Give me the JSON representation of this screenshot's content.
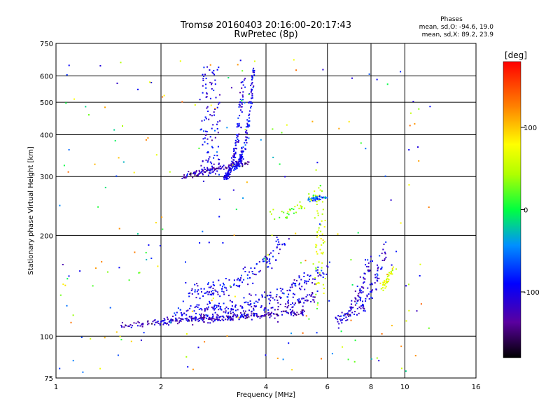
{
  "chart_data": {
    "type": "scatter",
    "title": "Tromsø 20160403 20:16:00–20:17:43",
    "subtitle": "RwPretec (8p)",
    "xlabel": "Frequency [MHz]",
    "ylabel": "Stationary phase Virtual Height [km]",
    "x_scale": "log",
    "y_scale": "log",
    "xlim": [
      1,
      16
    ],
    "ylim": [
      75,
      750
    ],
    "x_ticks": [
      1,
      2,
      4,
      6,
      8,
      10,
      16
    ],
    "x_tick_labels": [
      "1",
      "2",
      "4",
      "6",
      "8",
      "10",
      "16"
    ],
    "y_ticks": [
      75,
      100,
      200,
      300,
      400,
      500,
      600,
      750
    ],
    "y_tick_labels": [
      "75",
      "100",
      "200",
      "300",
      "400",
      "500",
      "600",
      "750"
    ],
    "grid": true,
    "stats": {
      "title": "Phases",
      "line1": "mean, sd,O: -94.6, 19.0",
      "line2": "mean, sd,X:  89.2, 23.9"
    },
    "colorbar": {
      "label": "[deg]",
      "range": [
        -180,
        180
      ],
      "ticks": [
        100,
        0,
        -100
      ],
      "tick_labels": [
        "100",
        "0",
        "-100"
      ]
    },
    "traces": [
      {
        "f_start": 1.55,
        "f_end": 5.2,
        "h_start": 108,
        "h_end": 118,
        "shape": "flat",
        "phase": -125,
        "n": 220,
        "jitter": 0.025
      },
      {
        "f_start": 2.0,
        "f_end": 5.6,
        "h_start": 112,
        "h_end": 132,
        "shape": "rise",
        "phase": -110,
        "n": 160,
        "jitter": 0.05
      },
      {
        "f_start": 2.2,
        "f_end": 6.0,
        "h_start": 118,
        "h_end": 160,
        "shape": "rise",
        "phase": -100,
        "n": 200,
        "jitter": 0.06
      },
      {
        "f_start": 2.4,
        "f_end": 4.6,
        "h_start": 135,
        "h_end": 195,
        "shape": "rise",
        "phase": -95,
        "n": 140,
        "jitter": 0.08
      },
      {
        "f_start": 2.3,
        "f_end": 3.55,
        "h_start": 300,
        "h_end": 330,
        "shape": "flat",
        "phase": -130,
        "n": 110,
        "jitter": 0.03
      },
      {
        "f_start": 2.6,
        "f_end": 2.95,
        "h_start": 300,
        "h_end": 640,
        "shape": "vertical",
        "phase": -100,
        "n": 110,
        "jitter": 0.02
      },
      {
        "f_start": 3.05,
        "f_end": 3.45,
        "h_start": 300,
        "h_end": 590,
        "shape": "rise",
        "phase": -105,
        "n": 140,
        "jitter": 0.03
      },
      {
        "f_start": 3.25,
        "f_end": 3.7,
        "h_start": 320,
        "h_end": 640,
        "shape": "rise",
        "phase": -95,
        "n": 150,
        "jitter": 0.03
      },
      {
        "f_start": 6.4,
        "f_end": 8.0,
        "h_start": 112,
        "h_end": 175,
        "shape": "rise",
        "phase": -110,
        "n": 90,
        "jitter": 0.05
      },
      {
        "f_start": 7.0,
        "f_end": 8.8,
        "h_start": 118,
        "h_end": 185,
        "shape": "rise",
        "phase": -100,
        "n": 70,
        "jitter": 0.05
      },
      {
        "f_start": 5.5,
        "f_end": 5.9,
        "h_start": 125,
        "h_end": 270,
        "shape": "vertical",
        "phase": 60,
        "n": 60,
        "jitter": 0.03
      },
      {
        "f_start": 8.6,
        "f_end": 9.3,
        "h_start": 140,
        "h_end": 160,
        "shape": "flat",
        "phase": 70,
        "n": 40,
        "jitter": 0.04
      },
      {
        "f_start": 5.3,
        "f_end": 6.0,
        "h_start": 255,
        "h_end": 262,
        "shape": "flat",
        "phase": -60,
        "n": 40,
        "jitter": 0.02
      },
      {
        "f_start": 4.1,
        "f_end": 5.8,
        "h_start": 230,
        "h_end": 280,
        "shape": "rise",
        "phase": 40,
        "n": 40,
        "jitter": 0.05
      }
    ],
    "scatter_noise": {
      "n": 230,
      "f_range": [
        1,
        12
      ],
      "h_range": [
        78,
        700
      ],
      "phase_range": [
        -130,
        140
      ]
    }
  }
}
